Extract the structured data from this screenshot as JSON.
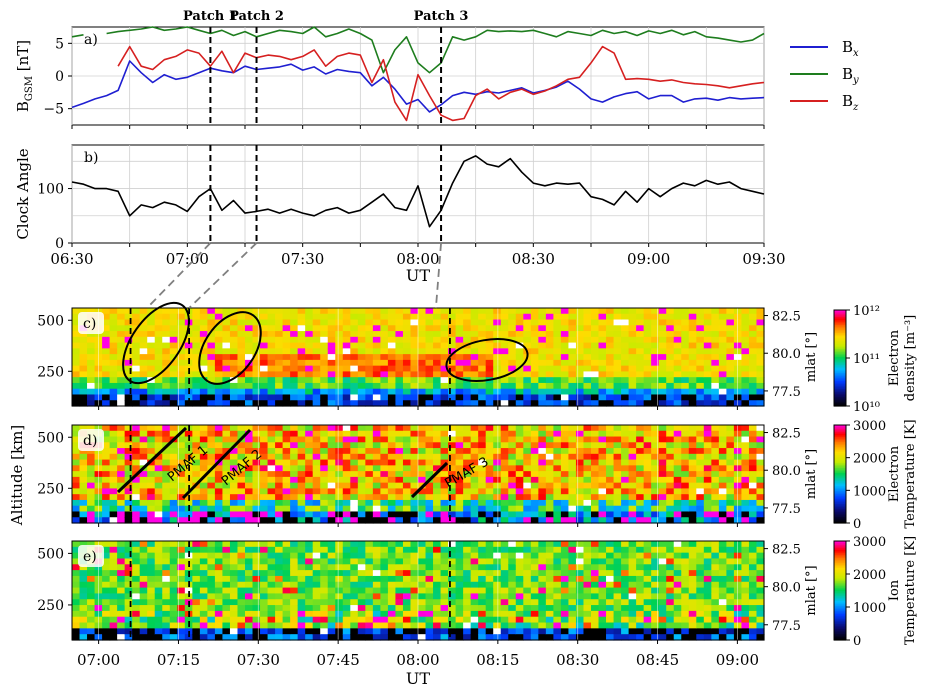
{
  "chart_data": [
    {
      "id": "a",
      "type": "line",
      "panel_label": "a)",
      "ylabel": "B$_{GSM}$ [nT]",
      "ylabel_main": "B",
      "ylabel_sub": "GSM",
      "ylabel_unit": " [nT]",
      "x_range": [
        "06:30",
        "09:30"
      ],
      "ylim": [
        -7.5,
        7.5
      ],
      "yticks": [
        "5",
        "0",
        "−5"
      ],
      "xtick_labels": [
        "06:30",
        "07:00",
        "07:30",
        "08:00",
        "08:30",
        "09:00",
        "09:30"
      ],
      "legend": {
        "placement": "right",
        "entries": [
          {
            "main": "B",
            "sub": "x",
            "color": "#1f1fd1"
          },
          {
            "main": "B",
            "sub": "y",
            "color": "#1e7d1e"
          },
          {
            "main": "B",
            "sub": "z",
            "color": "#d62020"
          }
        ]
      },
      "series": [
        {
          "name": "Bx",
          "color": "#1f1fd1",
          "x_min": [
            0,
            3,
            6,
            9,
            12,
            15,
            18,
            21,
            24,
            27,
            30,
            33,
            36,
            39,
            42,
            45,
            48,
            51,
            54,
            57,
            60,
            63,
            66,
            69,
            72,
            75,
            78,
            81,
            84,
            87,
            90,
            93,
            96,
            99,
            102,
            105,
            108,
            111,
            114,
            117,
            120,
            123,
            126,
            129,
            132,
            135,
            138,
            141,
            144,
            147,
            150,
            153,
            156,
            159,
            162,
            165,
            168,
            171,
            174,
            177,
            180
          ],
          "values": [
            -4.8,
            -4.2,
            -3.5,
            -3.0,
            -2.2,
            2.3,
            0.5,
            -1.0,
            0.2,
            -0.5,
            -0.2,
            0.5,
            1.2,
            0.8,
            0.5,
            1.5,
            1.0,
            1.2,
            1.4,
            1.8,
            0.9,
            1.4,
            0.3,
            1.0,
            0.7,
            0.5,
            -1.5,
            -0.2,
            -2.0,
            -4.3,
            -3.6,
            -5.5,
            -4.4,
            -3.0,
            -2.5,
            -2.8,
            -2.4,
            -2.6,
            -2.2,
            -1.8,
            -2.6,
            -2.2,
            -1.7,
            -0.8,
            -2.0,
            -3.5,
            -4.0,
            -3.2,
            -2.7,
            -2.4,
            -3.5,
            -3.0,
            -3.0,
            -4.0,
            -3.5,
            -3.4,
            -3.7,
            -3.3,
            -3.5,
            -3.4,
            -3.3
          ]
        },
        {
          "name": "By",
          "color": "#1e7d1e",
          "x_min": [
            0,
            3,
            6,
            9,
            12,
            15,
            18,
            21,
            24,
            27,
            30,
            33,
            36,
            39,
            42,
            45,
            48,
            51,
            54,
            57,
            60,
            63,
            66,
            69,
            72,
            75,
            78,
            81,
            84,
            87,
            90,
            93,
            96,
            99,
            102,
            105,
            108,
            111,
            114,
            117,
            120,
            123,
            126,
            129,
            132,
            135,
            138,
            141,
            144,
            147,
            150,
            153,
            156,
            159,
            162,
            165,
            168,
            171,
            174,
            177,
            180
          ],
          "values": [
            6.0,
            6.3,
            null,
            6.5,
            6.8,
            7.0,
            7.2,
            7.5,
            7.0,
            7.2,
            7.5,
            7.0,
            6.5,
            7.0,
            6.2,
            6.8,
            6.0,
            6.5,
            7.0,
            6.8,
            6.5,
            7.5,
            6.0,
            6.5,
            7.2,
            6.5,
            5.5,
            0.5,
            4.0,
            6.0,
            2.0,
            0.5,
            2.0,
            6.0,
            5.5,
            6.0,
            7.0,
            6.8,
            6.9,
            6.8,
            7.0,
            6.5,
            6.0,
            6.8,
            6.5,
            6.2,
            7.0,
            6.5,
            6.8,
            6.2,
            6.9,
            6.5,
            7.0,
            6.3,
            6.8,
            6.0,
            5.8,
            5.5,
            5.2,
            5.5,
            6.5
          ]
        },
        {
          "name": "Bz",
          "color": "#d62020",
          "x_min": [
            0,
            3,
            6,
            9,
            12,
            15,
            18,
            21,
            24,
            27,
            30,
            33,
            36,
            39,
            42,
            45,
            48,
            51,
            54,
            57,
            60,
            63,
            66,
            69,
            72,
            75,
            78,
            81,
            84,
            87,
            90,
            93,
            96,
            99,
            102,
            105,
            108,
            111,
            114,
            117,
            120,
            123,
            126,
            129,
            132,
            135,
            138,
            141,
            144,
            147,
            150,
            153,
            156,
            159,
            162,
            165,
            168,
            171,
            174,
            177,
            180
          ],
          "values": [
            null,
            null,
            null,
            null,
            1.5,
            4.5,
            1.5,
            1.0,
            2.5,
            3.0,
            4.0,
            3.5,
            1.5,
            3.8,
            0.5,
            3.5,
            2.8,
            3.2,
            3.0,
            2.5,
            3.0,
            4.0,
            1.5,
            3.0,
            3.5,
            3.2,
            -1.0,
            2.5,
            -4.0,
            -6.8,
            0.2,
            -3.0,
            -6.0,
            -6.8,
            -6.5,
            -3.0,
            -2.0,
            -3.5,
            -2.5,
            -2.0,
            -2.8,
            -2.3,
            -1.5,
            -0.5,
            -0.2,
            2.0,
            4.5,
            3.5,
            -0.5,
            -0.4,
            -0.5,
            -0.8,
            -0.6,
            -1.0,
            -1.2,
            -1.3,
            -1.5,
            -1.8,
            -1.5,
            -1.2,
            -1.0
          ]
        }
      ]
    },
    {
      "id": "b",
      "type": "line",
      "panel_label": "b)",
      "ylabel": "Clock Angle",
      "x_range": [
        "06:30",
        "09:30"
      ],
      "ylim": [
        0,
        180
      ],
      "yticks": [
        "100",
        "0"
      ],
      "xlabel": "UT",
      "xtick_labels": [
        "06:30",
        "07:00",
        "07:30",
        "08:00",
        "08:30",
        "09:00",
        "09:30"
      ],
      "series": [
        {
          "name": "Clock Angle",
          "color": "#000000",
          "x_min": [
            0,
            3,
            6,
            9,
            12,
            15,
            18,
            21,
            24,
            27,
            30,
            33,
            36,
            39,
            42,
            45,
            48,
            51,
            54,
            57,
            60,
            63,
            66,
            69,
            72,
            75,
            78,
            81,
            84,
            87,
            90,
            93,
            96,
            99,
            102,
            105,
            108,
            111,
            114,
            117,
            120,
            123,
            126,
            129,
            132,
            135,
            138,
            141,
            144,
            147,
            150,
            153,
            156,
            159,
            162,
            165,
            168,
            171,
            174,
            177,
            180
          ],
          "values": [
            112,
            108,
            100,
            100,
            95,
            50,
            70,
            65,
            75,
            70,
            58,
            85,
            100,
            60,
            78,
            55,
            58,
            62,
            55,
            62,
            55,
            50,
            60,
            65,
            55,
            60,
            75,
            90,
            65,
            60,
            105,
            30,
            60,
            110,
            150,
            160,
            145,
            140,
            155,
            130,
            110,
            105,
            110,
            108,
            110,
            85,
            80,
            70,
            95,
            75,
            100,
            85,
            100,
            110,
            105,
            115,
            108,
            112,
            100,
            95,
            90
          ]
        }
      ],
      "markers": [
        {
          "label": "Patch 1",
          "time": "07:06"
        },
        {
          "label": "Patch 2",
          "time": "07:18"
        },
        {
          "label": "Patch 3",
          "time": "08:06"
        }
      ]
    },
    {
      "id": "c",
      "type": "heatmap",
      "panel_label": "c)",
      "right_axis_label": "mlat [°]",
      "right_ticks": [
        "82.5",
        "80.0",
        "77.5"
      ],
      "yticks": [
        "500",
        "250"
      ],
      "colorbar": {
        "label_lines": [
          "Electron",
          "density [m$^{-3}$]"
        ],
        "label_line1": "Electron",
        "label_line2": "density [m⁻³]",
        "ticks": [
          "10¹²",
          "10¹¹",
          "10¹⁰"
        ],
        "scale": "log",
        "range": [
          10000000000.0,
          1000000000000.0
        ]
      },
      "annotations": [
        "ellipse around Patch 1",
        "ellipse around Patch 2",
        "ellipse around Patch 3"
      ]
    },
    {
      "id": "d",
      "type": "heatmap",
      "panel_label": "d)",
      "right_axis_label": "mlat [°]",
      "right_ticks": [
        "82.5",
        "80.0",
        "77.5"
      ],
      "yticks": [
        "500",
        "250"
      ],
      "colorbar": {
        "label_line1": "Electron",
        "label_line2": "Temperature [K]",
        "ticks": [
          "3000",
          "2000",
          "1000",
          "0"
        ],
        "range": [
          0,
          3000
        ]
      },
      "annotations": [
        "PMAF 1",
        "PMAF 2",
        "PMAF 3"
      ]
    },
    {
      "id": "e",
      "type": "heatmap",
      "panel_label": "e)",
      "right_axis_label": "mlat [°]",
      "right_ticks": [
        "82.5",
        "80.0",
        "77.5"
      ],
      "yticks": [
        "500",
        "250"
      ],
      "colorbar": {
        "label_line1": "Ion",
        "label_line2": "Temperature [K]",
        "ticks": [
          "3000",
          "2000",
          "1000",
          "0"
        ],
        "range": [
          0,
          3000
        ]
      },
      "xlabel": "UT",
      "xtick_labels": [
        "07:00",
        "07:15",
        "07:30",
        "07:45",
        "08:00",
        "08:15",
        "08:30",
        "08:45",
        "09:00"
      ]
    }
  ],
  "shared": {
    "altitude_label": "Altitude [km]",
    "top_xlabel": "UT",
    "bottom_xlabel": "UT",
    "patch_labels": [
      "Patch 1",
      "Patch 2",
      "Patch 3"
    ],
    "pmaf_labels": [
      "PMAF 1",
      "PMAF 2",
      "PMAF 3"
    ]
  }
}
